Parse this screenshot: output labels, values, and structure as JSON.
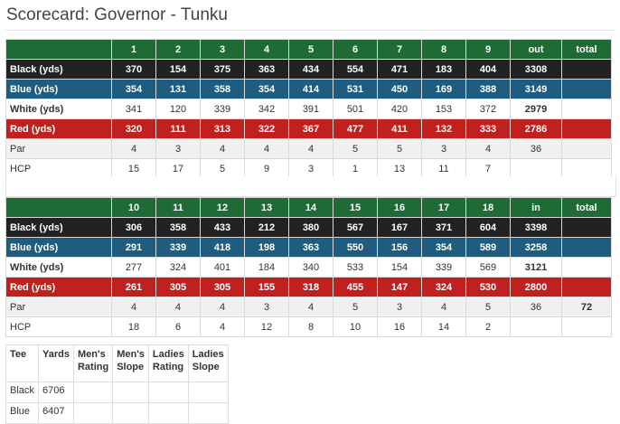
{
  "page_title": "Scorecard: Governor - Tunku",
  "front_nine": {
    "header": [
      "",
      "1",
      "2",
      "3",
      "4",
      "5",
      "6",
      "7",
      "8",
      "9",
      "out",
      "total"
    ],
    "rows": [
      {
        "label": "Black (yds)",
        "values": [
          "370",
          "154",
          "375",
          "363",
          "434",
          "554",
          "471",
          "183",
          "404",
          "3308",
          ""
        ]
      },
      {
        "label": "Blue (yds)",
        "values": [
          "354",
          "131",
          "358",
          "354",
          "414",
          "531",
          "450",
          "169",
          "388",
          "3149",
          ""
        ]
      },
      {
        "label": "White (yds)",
        "values": [
          "341",
          "120",
          "339",
          "342",
          "391",
          "501",
          "420",
          "153",
          "372",
          "2979",
          ""
        ]
      },
      {
        "label": "Red (yds)",
        "values": [
          "320",
          "111",
          "313",
          "322",
          "367",
          "477",
          "411",
          "132",
          "333",
          "2786",
          ""
        ]
      },
      {
        "label": "Par",
        "values": [
          "4",
          "3",
          "4",
          "4",
          "4",
          "5",
          "5",
          "3",
          "4",
          "36",
          ""
        ]
      },
      {
        "label": "HCP",
        "values": [
          "15",
          "17",
          "5",
          "9",
          "3",
          "1",
          "13",
          "11",
          "7",
          "",
          ""
        ]
      }
    ]
  },
  "back_nine": {
    "header": [
      "",
      "10",
      "11",
      "12",
      "13",
      "14",
      "15",
      "16",
      "17",
      "18",
      "in",
      "total"
    ],
    "rows": [
      {
        "label": "Black (yds)",
        "values": [
          "306",
          "358",
          "433",
          "212",
          "380",
          "567",
          "167",
          "371",
          "604",
          "3398",
          ""
        ]
      },
      {
        "label": "Blue (yds)",
        "values": [
          "291",
          "339",
          "418",
          "198",
          "363",
          "550",
          "156",
          "354",
          "589",
          "3258",
          ""
        ]
      },
      {
        "label": "White (yds)",
        "values": [
          "277",
          "324",
          "401",
          "184",
          "340",
          "533",
          "154",
          "339",
          "569",
          "3121",
          ""
        ]
      },
      {
        "label": "Red (yds)",
        "values": [
          "261",
          "305",
          "305",
          "155",
          "318",
          "455",
          "147",
          "324",
          "530",
          "2800",
          ""
        ]
      },
      {
        "label": "Par",
        "values": [
          "4",
          "4",
          "4",
          "3",
          "4",
          "5",
          "3",
          "4",
          "5",
          "36",
          "72"
        ]
      },
      {
        "label": "HCP",
        "values": [
          "18",
          "6",
          "4",
          "12",
          "8",
          "10",
          "16",
          "14",
          "2",
          "",
          ""
        ]
      }
    ]
  },
  "tee_table": {
    "header": [
      "Tee",
      "Yards",
      "Men's Rating",
      "Men's Slope",
      "Ladies Rating",
      "Ladies Slope"
    ],
    "rows": [
      {
        "tee": "Black",
        "yards": "6706"
      },
      {
        "tee": "Blue",
        "yards": "6407"
      }
    ]
  },
  "colors": {
    "header_green": "#1f6b36",
    "black_tee": "#222222",
    "blue_tee": "#1e5d7f",
    "red_tee": "#c0211f",
    "par_row": "#f0f0f0"
  }
}
